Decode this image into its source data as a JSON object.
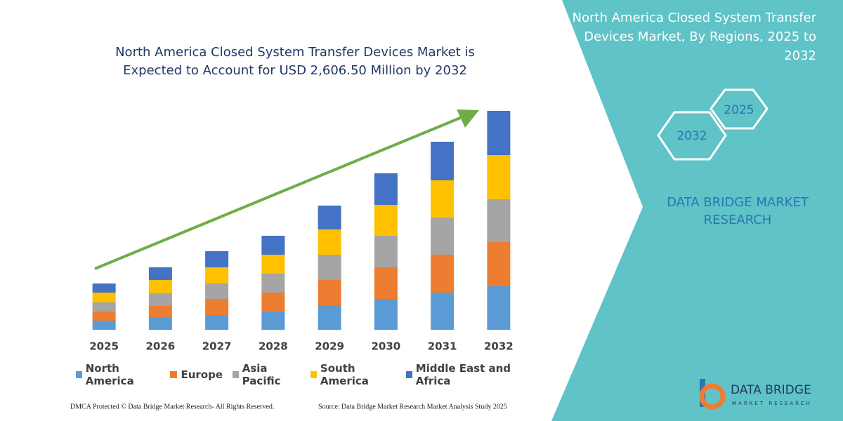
{
  "chart_data": {
    "type": "stacked_bar",
    "title": "North America Closed System Transfer Devices Market is Expected to Account for USD 2,606.50 Million by 2032",
    "categories": [
      "2025",
      "2026",
      "2027",
      "2028",
      "2029",
      "2030",
      "2031",
      "2032"
    ],
    "series": [
      {
        "name": "North America",
        "color": "#5b9bd5",
        "values": [
          13,
          17,
          21,
          26,
          35,
          44,
          53,
          62
        ]
      },
      {
        "name": "Europe",
        "color": "#ed7d31",
        "values": [
          13,
          17,
          23,
          27,
          36,
          45,
          54,
          63
        ]
      },
      {
        "name": "Asia Pacific",
        "color": "#a5a5a5",
        "values": [
          13,
          18,
          22,
          27,
          36,
          45,
          53,
          61
        ]
      },
      {
        "name": "South America",
        "color": "#ffc000",
        "values": [
          14,
          19,
          23,
          27,
          36,
          44,
          53,
          63
        ]
      },
      {
        "name": "Middle East and Africa",
        "color": "#4472c4",
        "values": [
          13,
          18,
          23,
          27,
          34,
          45,
          55,
          63
        ]
      }
    ],
    "ylim": [
      0,
      330
    ],
    "grid": false,
    "legend": "bottom",
    "trend_arrow_color": "#70ad47"
  },
  "panel": {
    "title": "North America Closed System Transfer Devices Market, By Regions, 2025 to 2032",
    "hex_start": "2025",
    "hex_end": "2032",
    "brand": "DATA BRIDGE MARKET RESEARCH"
  },
  "logo": {
    "name": "DATA BRIDGE",
    "tagline": "MARKET RESEARCH"
  },
  "footer": {
    "left": "DMCA Protected © Data Bridge Market Research- All Rights Reserved.",
    "right": "Source: Data Bridge Market Research Market Analysis Study 2025"
  }
}
